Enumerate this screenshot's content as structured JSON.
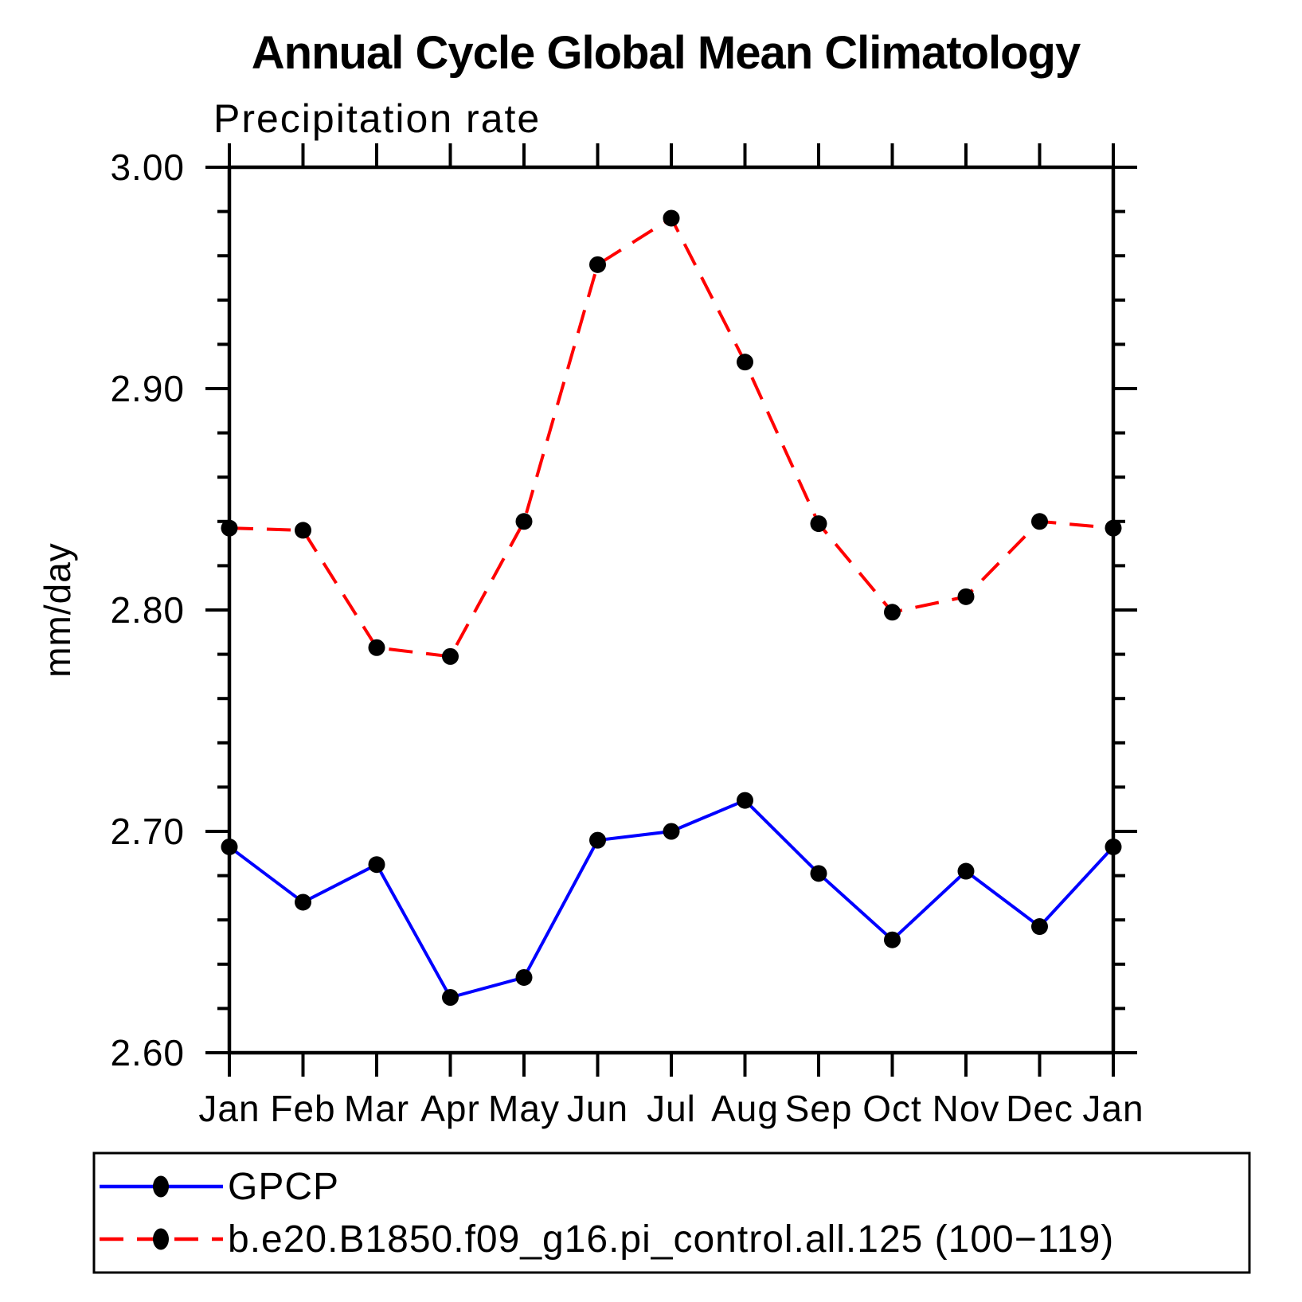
{
  "chart_data": {
    "type": "line",
    "title": "Annual Cycle Global Mean Climatology",
    "subtitle": "Precipitation rate",
    "ylabel": "mm/day",
    "xlabel": "",
    "categories": [
      "Jan",
      "Feb",
      "Mar",
      "Apr",
      "May",
      "Jun",
      "Jul",
      "Aug",
      "Sep",
      "Oct",
      "Nov",
      "Dec",
      "Jan"
    ],
    "ylim": [
      2.6,
      3.0
    ],
    "ytick_major_step": 0.1,
    "ytick_minor_step": 0.02,
    "ytick_labels": [
      "2.60",
      "2.70",
      "2.80",
      "2.90",
      "3.00"
    ],
    "grid": false,
    "legend_position": "bottom",
    "frame_color": "#000000",
    "marker_color": "#000000",
    "series": [
      {
        "name": "GPCP",
        "color": "#0000ff",
        "line_style": "solid",
        "marker": "circle",
        "values": [
          2.693,
          2.668,
          2.685,
          2.625,
          2.634,
          2.696,
          2.7,
          2.714,
          2.681,
          2.651,
          2.682,
          2.657,
          2.693
        ]
      },
      {
        "name": "b.e20.B1850.f09_g16.pi_control.all.125 (100−119)",
        "color": "#ff0000",
        "line_style": "dashed",
        "marker": "circle",
        "values": [
          2.837,
          2.836,
          2.783,
          2.779,
          2.84,
          2.956,
          2.977,
          2.912,
          2.839,
          2.799,
          2.806,
          2.84,
          2.837
        ]
      }
    ]
  }
}
